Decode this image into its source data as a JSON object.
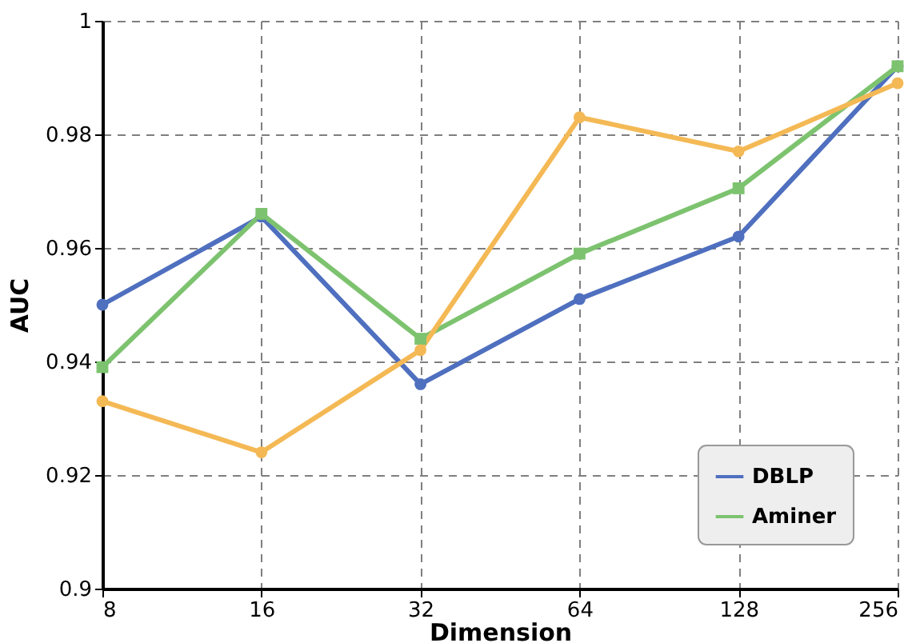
{
  "chart_data": {
    "type": "line",
    "xlabel": "Dimension",
    "ylabel": "AUC",
    "categories": [
      "8",
      "16",
      "32",
      "64",
      "128",
      "256"
    ],
    "ylim": [
      0.9,
      1
    ],
    "yticks": [
      0.9,
      0.92,
      0.94,
      0.96,
      0.98,
      1
    ],
    "grid": true,
    "legend": "bottom right",
    "line_style": "solid",
    "series": [
      {
        "name": "DBLP",
        "color": "#4f6fbf",
        "marker": "circle",
        "values": [
          0.95,
          0.9655,
          0.936,
          0.951,
          0.962,
          0.992
        ]
      },
      {
        "name": "Aminer",
        "color": "#7dc36f",
        "marker": "square",
        "values": [
          0.939,
          0.966,
          0.944,
          0.959,
          0.9705,
          0.992
        ]
      },
      {
        "color": "#f4b955",
        "marker": "circle",
        "values": [
          0.933,
          0.924,
          0.942,
          0.983,
          0.977,
          0.989
        ]
      }
    ]
  }
}
